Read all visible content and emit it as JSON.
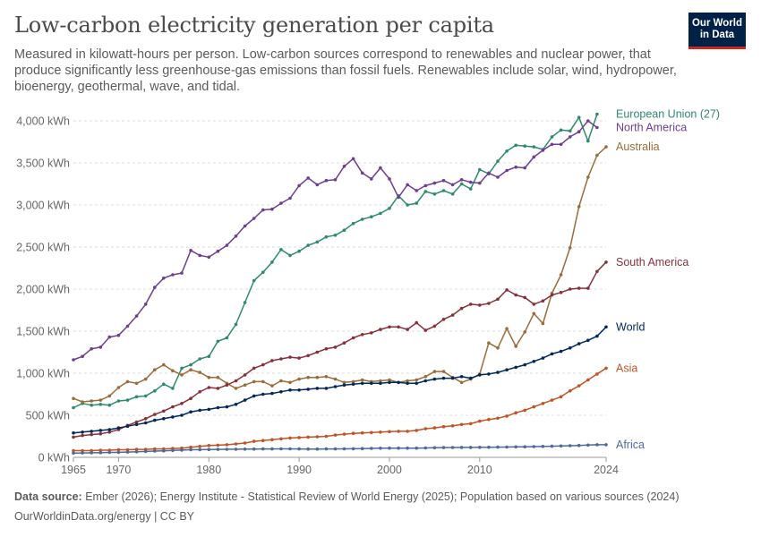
{
  "header": {
    "title": "Low-carbon electricity generation per capita",
    "subtitle": "Measured in kilowatt-hours per person. Low-carbon sources correspond to renewables and nuclear power, that produce significantly less greenhouse-gas emissions than fossil fuels. Renewables include solar, wind, hydropower, bioenergy, geothermal, wave, and tidal.",
    "logo_line1": "Our World",
    "logo_line2": "in Data"
  },
  "footer": {
    "source_label": "Data source:",
    "source_text": " Ember (2026); Energy Institute - Statistical Review of World Energy (2025); Population based on various sources (2024)",
    "url": "OurWorldinData.org/energy | CC BY"
  },
  "chart_data": {
    "type": "line",
    "title": "Low-carbon electricity generation per capita",
    "xlabel": "",
    "ylabel": "",
    "xlim": [
      1965,
      2024
    ],
    "ylim": [
      0,
      4000
    ],
    "x_ticks": [
      "1965",
      "1970",
      "1980",
      "1990",
      "2000",
      "2010",
      "2024"
    ],
    "y_ticks": [
      "0 kWh",
      "500 kWh",
      "1,000 kWh",
      "1,500 kWh",
      "2,000 kWh",
      "2,500 kWh",
      "3,000 kWh",
      "3,500 kWh",
      "4,000 kWh"
    ],
    "grid": "horizontal-dashed",
    "legend": "line-end labels",
    "x": [
      1965,
      1966,
      1967,
      1968,
      1969,
      1970,
      1971,
      1972,
      1973,
      1974,
      1975,
      1976,
      1977,
      1978,
      1979,
      1980,
      1981,
      1982,
      1983,
      1984,
      1985,
      1986,
      1987,
      1988,
      1989,
      1990,
      1991,
      1992,
      1993,
      1994,
      1995,
      1996,
      1997,
      1998,
      1999,
      2000,
      2001,
      2002,
      2003,
      2004,
      2005,
      2006,
      2007,
      2008,
      2009,
      2010,
      2011,
      2012,
      2013,
      2014,
      2015,
      2016,
      2017,
      2018,
      2019,
      2020,
      2021,
      2022,
      2023,
      2024
    ],
    "series": [
      {
        "name": "European Union (27)",
        "color": "#2e8a6e",
        "values": [
          590,
          640,
          620,
          630,
          620,
          670,
          680,
          720,
          730,
          790,
          870,
          820,
          1060,
          1100,
          1170,
          1200,
          1380,
          1420,
          1580,
          1840,
          2100,
          2200,
          2320,
          2470,
          2400,
          2450,
          2520,
          2560,
          2620,
          2640,
          2700,
          2780,
          2830,
          2860,
          2900,
          2960,
          3110,
          3000,
          3020,
          3160,
          3130,
          3170,
          3130,
          3250,
          3190,
          3420,
          3370,
          3520,
          3640,
          3710,
          3700,
          3690,
          3660,
          3810,
          3890,
          3880,
          4040,
          3760,
          4080,
          null
        ]
      },
      {
        "name": "North America",
        "color": "#6d3e91",
        "values": [
          1160,
          1200,
          1290,
          1310,
          1430,
          1450,
          1560,
          1680,
          1820,
          2020,
          2130,
          2170,
          2190,
          2460,
          2400,
          2380,
          2450,
          2520,
          2630,
          2750,
          2840,
          2940,
          2950,
          3020,
          3080,
          3230,
          3320,
          3240,
          3290,
          3300,
          3460,
          3550,
          3380,
          3310,
          3440,
          3310,
          3090,
          3240,
          3170,
          3230,
          3260,
          3290,
          3240,
          3300,
          3270,
          3260,
          3380,
          3330,
          3410,
          3450,
          3440,
          3570,
          3650,
          3720,
          3720,
          3810,
          3870,
          4000,
          3920,
          null
        ]
      },
      {
        "name": "Australia",
        "color": "#996d39",
        "values": [
          700,
          660,
          670,
          680,
          730,
          830,
          900,
          880,
          930,
          1040,
          1100,
          1030,
          980,
          1040,
          1010,
          950,
          950,
          880,
          820,
          860,
          900,
          900,
          850,
          910,
          890,
          930,
          950,
          950,
          960,
          930,
          890,
          900,
          920,
          900,
          910,
          920,
          890,
          910,
          920,
          960,
          1020,
          1020,
          950,
          890,
          930,
          990,
          1360,
          1300,
          1530,
          1320,
          1490,
          1710,
          1590,
          1950,
          2170,
          2490,
          2980,
          3330,
          3590,
          3690
        ]
      },
      {
        "name": "South America",
        "color": "#883039",
        "values": [
          240,
          260,
          270,
          280,
          300,
          330,
          380,
          420,
          460,
          510,
          550,
          600,
          640,
          700,
          780,
          830,
          820,
          860,
          910,
          980,
          1060,
          1100,
          1150,
          1170,
          1190,
          1180,
          1210,
          1250,
          1290,
          1310,
          1360,
          1420,
          1460,
          1480,
          1520,
          1550,
          1550,
          1520,
          1600,
          1510,
          1560,
          1640,
          1690,
          1770,
          1820,
          1810,
          1830,
          1880,
          1990,
          1930,
          1900,
          1820,
          1860,
          1930,
          1960,
          2000,
          2010,
          2010,
          2210,
          2320
        ]
      },
      {
        "name": "World",
        "color": "#00295b",
        "values": [
          290,
          300,
          310,
          320,
          330,
          350,
          370,
          390,
          410,
          440,
          460,
          480,
          500,
          540,
          560,
          570,
          590,
          600,
          630,
          680,
          730,
          750,
          760,
          780,
          800,
          800,
          810,
          820,
          820,
          840,
          860,
          870,
          880,
          880,
          880,
          890,
          890,
          880,
          880,
          910,
          930,
          940,
          940,
          960,
          940,
          980,
          990,
          1010,
          1040,
          1070,
          1100,
          1140,
          1180,
          1230,
          1260,
          1300,
          1350,
          1390,
          1440,
          1550
        ]
      },
      {
        "name": "Asia",
        "color": "#c15325",
        "values": [
          80,
          80,
          80,
          85,
          85,
          90,
          90,
          95,
          95,
          100,
          100,
          105,
          110,
          120,
          130,
          140,
          145,
          150,
          160,
          170,
          190,
          200,
          210,
          220,
          230,
          235,
          240,
          245,
          250,
          265,
          275,
          285,
          290,
          295,
          300,
          305,
          310,
          310,
          320,
          340,
          350,
          365,
          375,
          390,
          400,
          430,
          450,
          465,
          490,
          530,
          560,
          600,
          640,
          680,
          720,
          790,
          850,
          920,
          990,
          1060
        ]
      },
      {
        "name": "Africa",
        "color": "#4c6a9c",
        "values": [
          50,
          52,
          54,
          56,
          58,
          60,
          63,
          66,
          70,
          74,
          78,
          82,
          86,
          90,
          92,
          94,
          95,
          96,
          97,
          98,
          99,
          100,
          100,
          101,
          101,
          100,
          99,
          99,
          100,
          100,
          101,
          102,
          104,
          106,
          108,
          110,
          110,
          110,
          110,
          112,
          114,
          116,
          117,
          118,
          118,
          119,
          120,
          121,
          122,
          124,
          126,
          128,
          130,
          132,
          135,
          138,
          142,
          146,
          150,
          150
        ]
      }
    ]
  }
}
